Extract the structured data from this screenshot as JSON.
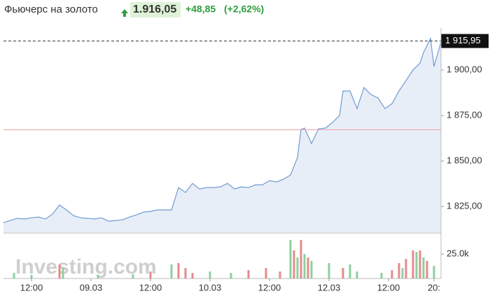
{
  "header": {
    "title": "Фьючерс на золото",
    "price": "1.916,05",
    "change": "+48,85",
    "change_pct": "(+2,62%)",
    "watermark": "Investing.com"
  },
  "chart_data": [
    {
      "type": "area",
      "color": "#6f9bd1",
      "fill": "#e8eef7",
      "x": [
        0,
        2,
        4,
        6,
        8,
        10,
        12,
        14,
        16,
        18,
        20,
        22,
        24,
        26,
        28,
        30,
        32,
        34,
        36,
        38,
        40,
        42,
        44,
        46,
        48,
        50,
        52,
        54,
        56,
        58,
        60,
        62,
        64,
        66,
        68,
        70,
        72,
        74,
        76,
        78,
        80,
        82,
        84,
        85,
        86,
        88,
        90,
        92,
        94,
        96,
        97,
        99,
        101,
        103,
        105,
        107,
        109,
        111,
        113,
        115,
        117,
        119,
        120,
        122,
        123,
        125
      ],
      "series": [
        {
          "values": [
            1816.2,
            1817.3,
            1818.5,
            1818.1,
            1818.8,
            1819.2,
            1818.1,
            1820.8,
            1825.8,
            1823.1,
            1820.0,
            1818.8,
            1818.5,
            1818.1,
            1818.8,
            1816.9,
            1817.3,
            1817.7,
            1819.2,
            1820.4,
            1821.9,
            1822.3,
            1823.1,
            1823.1,
            1823.1,
            1835.4,
            1832.7,
            1837.7,
            1834.6,
            1835.4,
            1835.4,
            1835.8,
            1837.7,
            1834.6,
            1835.8,
            1835.4,
            1836.9,
            1836.9,
            1839.2,
            1838.5,
            1840.0,
            1842.3,
            1851.9,
            1867.3,
            1868.1,
            1859.6,
            1867.7,
            1868.1,
            1871.2,
            1875.0,
            1888.5,
            1888.5,
            1878.8,
            1890.4,
            1886.5,
            1884.6,
            1878.8,
            1881.5,
            1888.5,
            1894.2,
            1900.0,
            1903.8,
            1909.6,
            1917.3,
            1901.9,
            1915.4
          ]
        }
      ],
      "xlim": [
        0,
        125
      ],
      "xticks": [
        {
          "value": 8,
          "label": "12:00"
        },
        {
          "value": 25,
          "label": "09.03"
        },
        {
          "value": 42,
          "label": "12:00"
        },
        {
          "value": 59,
          "label": "10.03"
        },
        {
          "value": 76,
          "label": "12:00"
        },
        {
          "value": 93,
          "label": "12.03"
        },
        {
          "value": 110,
          "label": "12:00"
        },
        {
          "value": 123,
          "label": "20:"
        }
      ],
      "ylim": [
        1810.8,
        1923.1
      ],
      "yticks": [
        {
          "value": 1825,
          "label": "1 825,00"
        },
        {
          "value": 1850,
          "label": "1 850,00"
        },
        {
          "value": 1875,
          "label": "1 875,00"
        },
        {
          "value": 1900,
          "label": "1 900,00"
        }
      ],
      "last_price": {
        "value": 1915.95,
        "label": "1 915,95"
      },
      "prev_close": 1867.2,
      "prev_close_color": "#e8a0a0"
    },
    {
      "type": "bar",
      "x": [
        3,
        8,
        16,
        17,
        27,
        37,
        42,
        48,
        50,
        52,
        54,
        59,
        65,
        70,
        75,
        79,
        82,
        83,
        84,
        85,
        86,
        87,
        88,
        93,
        97,
        99,
        101,
        108,
        111,
        113,
        114,
        115,
        117,
        118,
        119,
        120,
        121,
        123
      ],
      "values": [
        5700,
        3600,
        14300,
        10700,
        3600,
        4300,
        7100,
        14300,
        15700,
        10700,
        5700,
        7100,
        5700,
        8600,
        10700,
        7100,
        39300,
        28600,
        21400,
        39300,
        25000,
        21400,
        17900,
        15700,
        10700,
        14300,
        7100,
        5700,
        8600,
        15700,
        10700,
        20000,
        28600,
        27100,
        28600,
        21400,
        17900,
        12900
      ],
      "colors": [
        "#8ccf9f",
        "#8ccf9f",
        "#e58a8a",
        "#8ccf9f",
        "#8ccf9f",
        "#8ccf9f",
        "#e58a8a",
        "#8ccf9f",
        "#e58a8a",
        "#e58a8a",
        "#e58a8a",
        "#8ccf9f",
        "#8ccf9f",
        "#e58a8a",
        "#e58a8a",
        "#e58a8a",
        "#8ccf9f",
        "#e58a8a",
        "#8ccf9f",
        "#e58a8a",
        "#8ccf9f",
        "#e58a8a",
        "#8ccf9f",
        "#8ccf9f",
        "#e58a8a",
        "#8ccf9f",
        "#8ccf9f",
        "#8ccf9f",
        "#e58a8a",
        "#e58a8a",
        "#8ccf9f",
        "#e58a8a",
        "#e58a8a",
        "#8ccf9f",
        "#e58a8a",
        "#8ccf9f",
        "#e58a8a",
        "#8ccf9f"
      ],
      "xlim": [
        0,
        125
      ],
      "ylim": [
        0,
        41400
      ],
      "yticks": [
        {
          "value": 25000,
          "label": "25.0k"
        }
      ]
    }
  ]
}
